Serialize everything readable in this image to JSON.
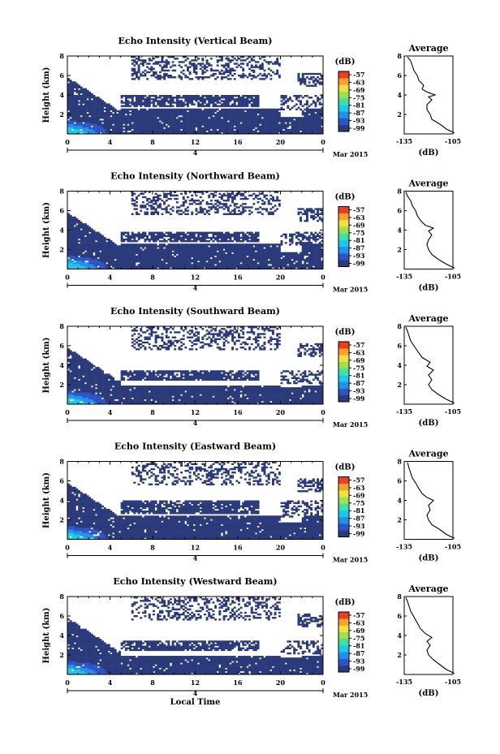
{
  "chart_data": [
    {
      "type": "heatmap",
      "title": "Echo Intensity (Vertical Beam)",
      "beam": "vertical",
      "ylabel": "Height (km)",
      "xlabel": "",
      "ylim": [
        0,
        8
      ],
      "xlim": [
        0,
        24
      ],
      "x_ticks": [
        "0",
        "4",
        "8",
        "12",
        "16",
        "20",
        "0"
      ],
      "y_ticks": [
        "2",
        "4",
        "6",
        "8"
      ],
      "date_marker": "4",
      "date_label": "Mar 2015",
      "colorbar": {
        "unit": "(dB)",
        "ticks": [
          "-57",
          "-63",
          "-69",
          "-75",
          "-81",
          "-87",
          "-93",
          "-99"
        ]
      },
      "profile": {
        "title": "Average",
        "xlabel": "(dB)",
        "x_ticks": [
          "-135",
          "-105"
        ],
        "y_ticks": [
          "2",
          "4",
          "6",
          "8"
        ],
        "points": [
          [
            -104,
            0.1
          ],
          [
            -109,
            0.5
          ],
          [
            -113,
            1.0
          ],
          [
            -118,
            1.5
          ],
          [
            -119,
            2.0
          ],
          [
            -121,
            2.5
          ],
          [
            -121,
            3.0
          ],
          [
            -118,
            3.5
          ],
          [
            -120,
            3.8
          ],
          [
            -116,
            4.0
          ],
          [
            -121,
            4.3
          ],
          [
            -124,
            4.6
          ],
          [
            -123,
            5.0
          ],
          [
            -126,
            5.5
          ],
          [
            -127,
            6.0
          ],
          [
            -129,
            6.5
          ],
          [
            -130,
            7.0
          ],
          [
            -131,
            7.5
          ],
          [
            -133,
            7.9
          ]
        ]
      },
      "signal": {
        "low_top": 2.6,
        "layer_base": 2.8,
        "layer_top": 4.0,
        "near_surface_strong": true
      }
    },
    {
      "type": "heatmap",
      "title": "Echo Intensity (Northward Beam)",
      "beam": "northward",
      "ylabel": "Height (km)",
      "xlabel": "",
      "ylim": [
        0,
        8
      ],
      "xlim": [
        0,
        24
      ],
      "x_ticks": [
        "0",
        "4",
        "8",
        "12",
        "16",
        "20",
        "0"
      ],
      "y_ticks": [
        "2",
        "4",
        "6",
        "8"
      ],
      "date_marker": "4",
      "date_label": "Mar 2015",
      "colorbar": {
        "unit": "(dB)",
        "ticks": [
          "-57",
          "-63",
          "-69",
          "-75",
          "-81",
          "-87",
          "-93",
          "-99"
        ]
      },
      "profile": {
        "title": "Average",
        "xlabel": "(dB)",
        "x_ticks": [
          "-135",
          "-105"
        ],
        "y_ticks": [
          "2",
          "4",
          "6",
          "8"
        ],
        "points": [
          [
            -104,
            0.1
          ],
          [
            -109,
            0.5
          ],
          [
            -114,
            1.0
          ],
          [
            -118,
            1.5
          ],
          [
            -120,
            2.0
          ],
          [
            -121,
            2.5
          ],
          [
            -120,
            3.0
          ],
          [
            -118,
            3.5
          ],
          [
            -120,
            3.9
          ],
          [
            -117,
            4.2
          ],
          [
            -122,
            4.5
          ],
          [
            -125,
            5.0
          ],
          [
            -127,
            5.5
          ],
          [
            -128,
            6.0
          ],
          [
            -130,
            6.5
          ],
          [
            -131,
            7.0
          ],
          [
            -133,
            7.5
          ],
          [
            -134,
            7.9
          ]
        ]
      },
      "signal": {
        "low_top": 2.6,
        "layer_base": 2.8,
        "layer_top": 3.8,
        "near_surface_strong": true
      }
    },
    {
      "type": "heatmap",
      "title": "Echo Intensity (Southward Beam)",
      "beam": "southward",
      "ylabel": "Height (km)",
      "xlabel": "",
      "ylim": [
        0,
        8
      ],
      "xlim": [
        0,
        24
      ],
      "x_ticks": [
        "0",
        "4",
        "8",
        "12",
        "16",
        "20",
        "0"
      ],
      "y_ticks": [
        "2",
        "4",
        "6",
        "8"
      ],
      "date_marker": "4",
      "date_label": "Mar 2015",
      "colorbar": {
        "unit": "(dB)",
        "ticks": [
          "-57",
          "-63",
          "-69",
          "-75",
          "-81",
          "-87",
          "-93",
          "-99"
        ]
      },
      "profile": {
        "title": "Average",
        "xlabel": "(dB)",
        "x_ticks": [
          "-135",
          "-105"
        ],
        "y_ticks": [
          "2",
          "4",
          "6",
          "8"
        ],
        "points": [
          [
            -104,
            0.1
          ],
          [
            -109,
            0.5
          ],
          [
            -114,
            1.0
          ],
          [
            -118,
            1.5
          ],
          [
            -120,
            2.0
          ],
          [
            -118,
            2.5
          ],
          [
            -120,
            3.0
          ],
          [
            -117,
            3.5
          ],
          [
            -121,
            3.9
          ],
          [
            -119,
            4.3
          ],
          [
            -124,
            4.8
          ],
          [
            -127,
            5.5
          ],
          [
            -129,
            6.0
          ],
          [
            -131,
            6.5
          ],
          [
            -132,
            7.0
          ],
          [
            -133,
            7.5
          ],
          [
            -134,
            7.9
          ]
        ]
      },
      "signal": {
        "low_top": 2.0,
        "layer_base": 2.4,
        "layer_top": 3.4,
        "near_surface_strong": true
      }
    },
    {
      "type": "heatmap",
      "title": "Echo Intensity (Eastward Beam)",
      "beam": "eastward",
      "ylabel": "Height (km)",
      "xlabel": "",
      "ylim": [
        0,
        8
      ],
      "xlim": [
        0,
        24
      ],
      "x_ticks": [
        "0",
        "4",
        "8",
        "12",
        "16",
        "20",
        "0"
      ],
      "y_ticks": [
        "2",
        "4",
        "6",
        "8"
      ],
      "date_marker": "4",
      "date_label": "Mar 2015",
      "colorbar": {
        "unit": "(dB)",
        "ticks": [
          "-57",
          "-63",
          "-69",
          "-75",
          "-81",
          "-87",
          "-93",
          "-99"
        ]
      },
      "profile": {
        "title": "Average",
        "xlabel": "(dB)",
        "x_ticks": [
          "-135",
          "-105"
        ],
        "y_ticks": [
          "2",
          "4",
          "6",
          "8"
        ],
        "points": [
          [
            -104,
            0.1
          ],
          [
            -109,
            0.5
          ],
          [
            -113,
            1.0
          ],
          [
            -118,
            1.5
          ],
          [
            -120,
            2.0
          ],
          [
            -121,
            2.5
          ],
          [
            -119,
            3.0
          ],
          [
            -120,
            3.5
          ],
          [
            -117,
            4.0
          ],
          [
            -121,
            4.3
          ],
          [
            -124,
            4.7
          ],
          [
            -126,
            5.2
          ],
          [
            -128,
            5.8
          ],
          [
            -130,
            6.3
          ],
          [
            -131,
            6.8
          ],
          [
            -132,
            7.3
          ],
          [
            -133,
            7.9
          ]
        ]
      },
      "signal": {
        "low_top": 2.4,
        "layer_base": 2.6,
        "layer_top": 4.0,
        "near_surface_strong": true
      }
    },
    {
      "type": "heatmap",
      "title": "Echo Intensity (Westward Beam)",
      "beam": "westward",
      "ylabel": "Height (km)",
      "xlabel": "Local Time",
      "ylim": [
        0,
        8
      ],
      "xlim": [
        0,
        24
      ],
      "x_ticks": [
        "0",
        "4",
        "8",
        "12",
        "16",
        "20",
        "0"
      ],
      "y_ticks": [
        "2",
        "4",
        "6",
        "8"
      ],
      "date_marker": "4",
      "date_label": "Mar 2015",
      "colorbar": {
        "unit": "(dB)",
        "ticks": [
          "-57",
          "-63",
          "-69",
          "-75",
          "-81",
          "-87",
          "-93",
          "-99"
        ]
      },
      "profile": {
        "title": "Average",
        "xlabel": "(dB)",
        "x_ticks": [
          "-135",
          "-105"
        ],
        "y_ticks": [
          "2",
          "4",
          "6",
          "8"
        ],
        "points": [
          [
            -104,
            0.1
          ],
          [
            -109,
            0.5
          ],
          [
            -113,
            1.0
          ],
          [
            -117,
            1.5
          ],
          [
            -120,
            2.0
          ],
          [
            -121,
            2.5
          ],
          [
            -119,
            3.0
          ],
          [
            -121,
            3.4
          ],
          [
            -118,
            3.8
          ],
          [
            -122,
            4.2
          ],
          [
            -125,
            4.7
          ],
          [
            -127,
            5.3
          ],
          [
            -129,
            5.9
          ],
          [
            -131,
            6.5
          ],
          [
            -132,
            7.0
          ],
          [
            -133,
            7.5
          ],
          [
            -134,
            7.9
          ]
        ]
      },
      "signal": {
        "low_top": 2.0,
        "layer_base": 2.4,
        "layer_top": 3.4,
        "near_surface_strong": true
      }
    }
  ],
  "colors": {
    "background": "#2b3a7a",
    "scale": [
      "#2b3a7a",
      "#2d55c8",
      "#2590e8",
      "#1ec8e8",
      "#40e0a8",
      "#a0e050",
      "#f0e040",
      "#f8a030",
      "#e84020"
    ]
  }
}
